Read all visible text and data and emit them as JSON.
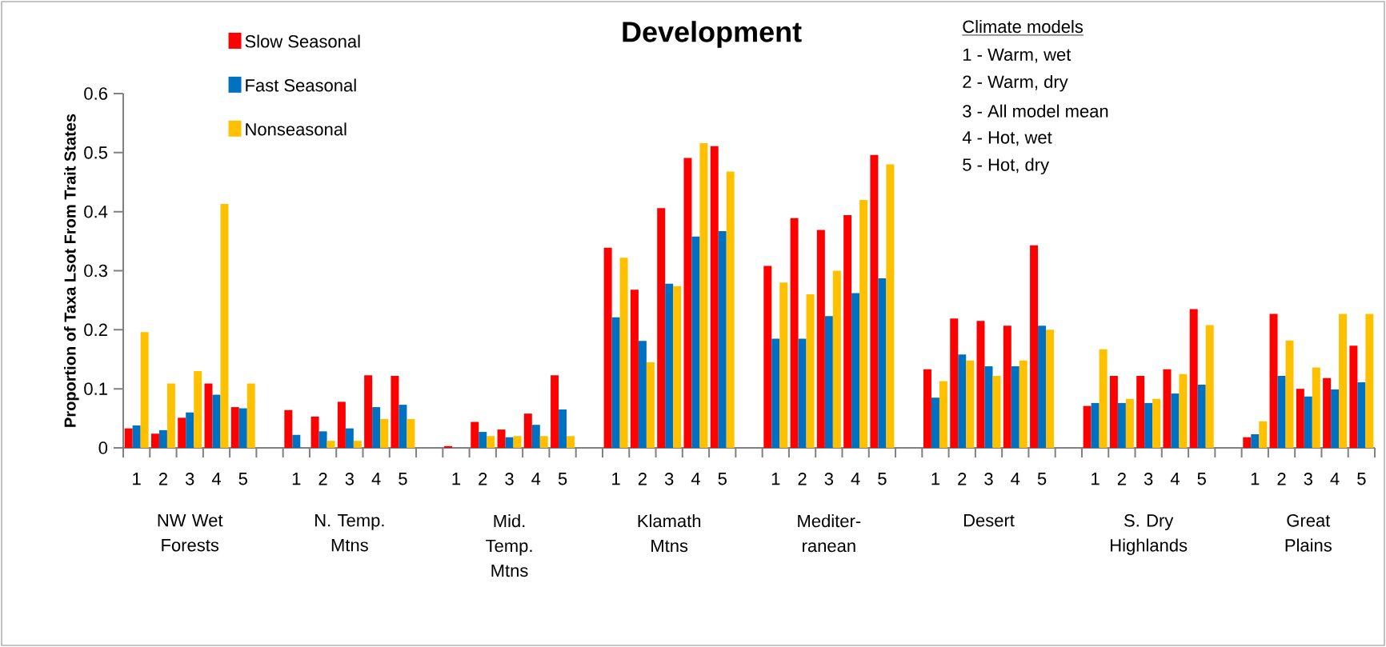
{
  "chart_data": {
    "type": "bar",
    "title": "Development",
    "ylabel": "Proportion of Taxa Lsot From Trait States",
    "categories": [
      "1",
      "2",
      "3",
      "4",
      "5",
      null,
      "1",
      "2",
      "3",
      "4",
      "5",
      null,
      "1",
      "2",
      "3",
      "4",
      "5",
      null,
      "1",
      "2",
      "3",
      "4",
      "5",
      null,
      "1",
      "2",
      "3",
      "4",
      "5",
      null,
      "1",
      "2",
      "3",
      "4",
      "5",
      null,
      "1",
      "2",
      "3",
      "4",
      "5",
      null,
      "1",
      "2",
      "3",
      "4",
      "5"
    ],
    "series": [
      {
        "name": "Slow Seasonal",
        "color": "#ff0000",
        "values": [
          0.033,
          0.024,
          0.051,
          0.109,
          0.069,
          null,
          0.064,
          0.053,
          0.078,
          0.123,
          0.122,
          null,
          0.003,
          0.044,
          0.031,
          0.058,
          0.123,
          null,
          0.339,
          0.268,
          0.406,
          0.491,
          0.511,
          null,
          0.308,
          0.389,
          0.369,
          0.394,
          0.496,
          null,
          0.133,
          0.219,
          0.215,
          0.207,
          0.343,
          null,
          0.071,
          0.122,
          0.122,
          0.133,
          0.235,
          null,
          0.018,
          0.227,
          0.1,
          0.118,
          0.173
        ]
      },
      {
        "name": "Fast Seasonal",
        "color": "#0070c0",
        "values": [
          0.038,
          0.03,
          0.06,
          0.09,
          0.067,
          null,
          0.022,
          0.028,
          0.033,
          0.069,
          0.073,
          null,
          0,
          0.027,
          0.018,
          0.039,
          0.065,
          null,
          0.221,
          0.181,
          0.278,
          0.358,
          0.367,
          null,
          0.185,
          0.185,
          0.223,
          0.262,
          0.287,
          null,
          0.085,
          0.158,
          0.138,
          0.138,
          0.207,
          null,
          0.076,
          0.076,
          0.076,
          0.092,
          0.107,
          null,
          0.023,
          0.122,
          0.087,
          0.099,
          0.111
        ]
      },
      {
        "name": "Nonseasonal",
        "color": "#ffc000",
        "values": [
          0.196,
          0.109,
          0.13,
          0.413,
          0.109,
          null,
          0,
          0.012,
          0.012,
          0.049,
          0.049,
          null,
          0,
          0.02,
          0.02,
          0.02,
          0.02,
          null,
          0.322,
          0.145,
          0.274,
          0.516,
          0.468,
          null,
          0.28,
          0.26,
          0.3,
          0.42,
          0.48,
          null,
          0.113,
          0.148,
          0.122,
          0.148,
          0.2,
          null,
          0.167,
          0.083,
          0.083,
          0.125,
          0.208,
          null,
          0.045,
          0.182,
          0.136,
          0.227,
          0.227
        ]
      }
    ],
    "ylim": [
      0,
      0.6
    ],
    "yticks": [
      0,
      0.1,
      0.2,
      0.3,
      0.4,
      0.5,
      0.6
    ],
    "legend": "top left",
    "annotations": [
      "NW Wet Forests",
      "N. Temp. Mtns",
      "Mid. Temp. Mtns",
      "Klamath Mtns",
      "Mediter-ranean",
      "Desert",
      "S. Dry Highlands",
      "Great Plains",
      "Climate models",
      "1 - Warm, wet",
      "2 - Warm, dry",
      "3 - All model mean",
      "4 - Hot, wet",
      "5 - Hot, dry"
    ]
  }
}
